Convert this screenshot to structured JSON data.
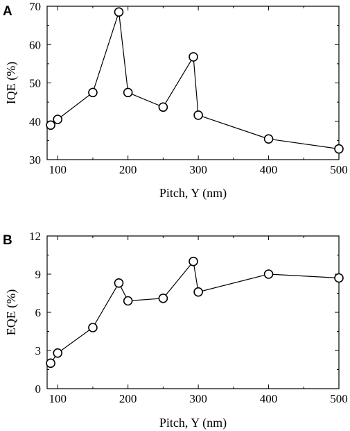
{
  "chart_data": [
    {
      "panel": "A",
      "type": "line",
      "xlabel": "Pitch, Y (nm)",
      "ylabel": "IQE (%)",
      "xlim": [
        85,
        500
      ],
      "ylim": [
        30,
        70
      ],
      "xticks": [
        100,
        200,
        300,
        400,
        500
      ],
      "yticks": [
        30,
        40,
        50,
        60,
        70
      ],
      "grid": false,
      "marker": "open-circle",
      "x": [
        90,
        100,
        150,
        187,
        200,
        250,
        293,
        300,
        400,
        500
      ],
      "y": [
        39.0,
        40.5,
        47.5,
        68.5,
        47.5,
        43.7,
        56.8,
        41.6,
        35.4,
        32.8
      ]
    },
    {
      "panel": "B",
      "type": "line",
      "xlabel": "Pitch, Y (nm)",
      "ylabel": "EQE (%)",
      "xlim": [
        85,
        500
      ],
      "ylim": [
        0,
        12
      ],
      "xticks": [
        100,
        200,
        300,
        400,
        500
      ],
      "yticks": [
        0,
        3,
        6,
        9,
        12
      ],
      "grid": false,
      "marker": "open-circle",
      "x": [
        90,
        100,
        150,
        187,
        200,
        250,
        293,
        300,
        400,
        500
      ],
      "y": [
        2.0,
        2.8,
        4.8,
        8.3,
        6.9,
        7.1,
        10.0,
        7.6,
        9.0,
        8.7
      ]
    }
  ]
}
